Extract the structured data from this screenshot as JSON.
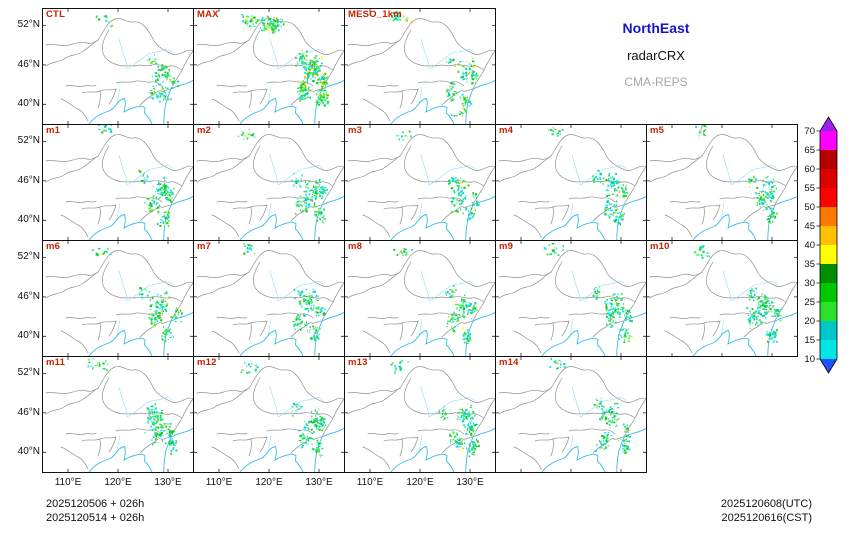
{
  "legend": {
    "region": "NorthEast",
    "product": "radarCRX",
    "model": "CMA-REPS"
  },
  "panels": [
    {
      "label": "CTL",
      "row": 0,
      "col": 0
    },
    {
      "label": "MAX",
      "row": 0,
      "col": 1
    },
    {
      "label": "MESO_1km",
      "row": 0,
      "col": 2
    },
    {
      "label": "m1",
      "row": 1,
      "col": 0
    },
    {
      "label": "m2",
      "row": 1,
      "col": 1
    },
    {
      "label": "m3",
      "row": 1,
      "col": 2
    },
    {
      "label": "m4",
      "row": 1,
      "col": 3
    },
    {
      "label": "m5",
      "row": 1,
      "col": 4
    },
    {
      "label": "m6",
      "row": 2,
      "col": 0
    },
    {
      "label": "m7",
      "row": 2,
      "col": 1
    },
    {
      "label": "m8",
      "row": 2,
      "col": 2
    },
    {
      "label": "m9",
      "row": 2,
      "col": 3
    },
    {
      "label": "m10",
      "row": 2,
      "col": 4
    },
    {
      "label": "m11",
      "row": 3,
      "col": 0
    },
    {
      "label": "m12",
      "row": 3,
      "col": 1
    },
    {
      "label": "m13",
      "row": 3,
      "col": 2
    },
    {
      "label": "m14",
      "row": 3,
      "col": 3
    }
  ],
  "axes": {
    "y_ticks": [
      "52°N",
      "46°N",
      "40°N"
    ],
    "x_ticks": [
      "110°E",
      "120°E",
      "130°E"
    ]
  },
  "colorbar": {
    "ticks": [
      "70",
      "65",
      "60",
      "55",
      "50",
      "45",
      "40",
      "35",
      "30",
      "25",
      "20",
      "15",
      "10"
    ],
    "colors": [
      "#A020F0",
      "#FF00FF",
      "#B40000",
      "#DC0000",
      "#FF0000",
      "#FF7800",
      "#FFC000",
      "#FFFF00",
      "#008E00",
      "#00C800",
      "#2BE22B",
      "#00C8C8",
      "#00E6E6",
      "#2050FF"
    ]
  },
  "footer": {
    "init_line1": "2025120506 + 026h",
    "init_line2": "2025120514 + 026h",
    "valid_utc": "2025120608(UTC)",
    "valid_cst": "2025120616(CST)"
  },
  "colors": {
    "panel_label": "#CC2200",
    "legend_region": "#1515CC",
    "legend_model": "#A6A6A6",
    "boundary": "#909090",
    "coastline": "#35BCE8",
    "river": "#8ADCF2"
  }
}
